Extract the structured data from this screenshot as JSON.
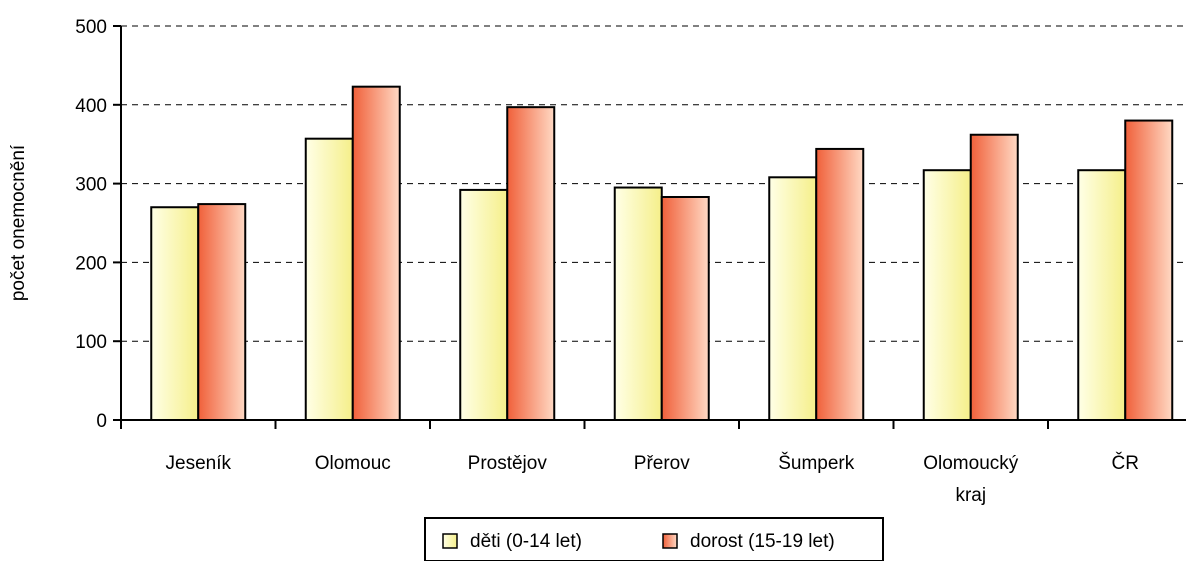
{
  "chart_data": {
    "type": "bar",
    "title": "",
    "xlabel": "",
    "ylabel": "počet onemocnění",
    "ylim": [
      0,
      500
    ],
    "yticks": [
      0,
      100,
      200,
      300,
      400,
      500
    ],
    "grid": "horizontal dashed",
    "legend_position": "bottom",
    "categories": [
      [
        "Jeseník"
      ],
      [
        "Olomouc"
      ],
      [
        "Prostějov"
      ],
      [
        "Přerov"
      ],
      [
        "Šumperk"
      ],
      [
        "Olomoucký",
        "kraj"
      ],
      [
        "ČR"
      ]
    ],
    "series": [
      {
        "name": "děti (0-14 let)",
        "values": [
          270,
          357,
          292,
          295,
          308,
          317,
          317
        ]
      },
      {
        "name": "dorost (15-19 let)",
        "values": [
          274,
          423,
          397,
          283,
          344,
          362,
          380
        ]
      }
    ]
  },
  "colors": {
    "series_0_light": "#ffffe6",
    "series_0_dark": "#f5ef8a",
    "series_1_light": "#ffd9c4",
    "series_1_dark": "#f0603a"
  }
}
